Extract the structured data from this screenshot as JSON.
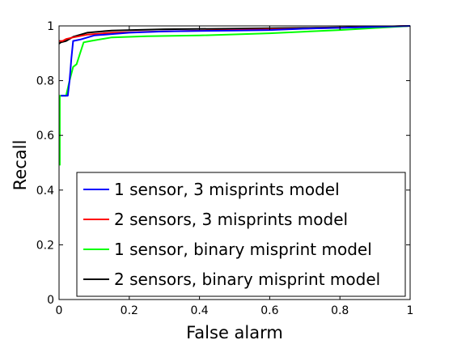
{
  "chart_data": {
    "type": "line",
    "title": "",
    "xlabel": "False alarm",
    "ylabel": "Recall",
    "xlim": [
      0,
      1
    ],
    "ylim": [
      0,
      1
    ],
    "xticks": [
      0,
      0.2,
      0.4,
      0.6,
      0.8,
      1
    ],
    "yticks": [
      0,
      0.2,
      0.4,
      0.6,
      0.8,
      1
    ],
    "xtick_labels": [
      "0",
      "0.2",
      "0.4",
      "0.6",
      "0.8",
      "1"
    ],
    "ytick_labels": [
      "0",
      "0.2",
      "0.4",
      "0.6",
      "0.8",
      "1"
    ],
    "grid": false,
    "legend_position": "bottom-right",
    "series": [
      {
        "name": "1 sensor, 3 misprints model",
        "color": "#0000ff",
        "points": [
          [
            0.005,
            0.745
          ],
          [
            0.025,
            0.745
          ],
          [
            0.03,
            0.8
          ],
          [
            0.035,
            0.88
          ],
          [
            0.04,
            0.945
          ],
          [
            0.06,
            0.95
          ],
          [
            0.1,
            0.965
          ],
          [
            0.2,
            0.975
          ],
          [
            0.3,
            0.98
          ],
          [
            0.5,
            0.983
          ],
          [
            0.6,
            0.985
          ],
          [
            0.7,
            0.99
          ],
          [
            0.8,
            0.993
          ],
          [
            1.0,
            1.0
          ]
        ]
      },
      {
        "name": "2 sensors, 3 misprints model",
        "color": "#ff0000",
        "points": [
          [
            0.0,
            0.945
          ],
          [
            0.01,
            0.945
          ],
          [
            0.02,
            0.952
          ],
          [
            0.04,
            0.958
          ],
          [
            0.08,
            0.968
          ],
          [
            0.15,
            0.975
          ],
          [
            0.3,
            0.98
          ],
          [
            0.5,
            0.985
          ],
          [
            0.7,
            0.99
          ],
          [
            1.0,
            1.0
          ]
        ]
      },
      {
        "name": "1 sensor, binary misprint model",
        "color": "#00ff00",
        "points": [
          [
            0.002,
            0.49
          ],
          [
            0.002,
            0.745
          ],
          [
            0.02,
            0.745
          ],
          [
            0.03,
            0.8
          ],
          [
            0.04,
            0.85
          ],
          [
            0.05,
            0.86
          ],
          [
            0.06,
            0.9
          ],
          [
            0.07,
            0.94
          ],
          [
            0.09,
            0.945
          ],
          [
            0.15,
            0.958
          ],
          [
            0.25,
            0.962
          ],
          [
            0.4,
            0.965
          ],
          [
            0.6,
            0.973
          ],
          [
            0.8,
            0.985
          ],
          [
            1.0,
            1.0
          ]
        ]
      },
      {
        "name": "2 sensors, binary misprint model",
        "color": "#000000",
        "points": [
          [
            0.0,
            0.935
          ],
          [
            0.005,
            0.94
          ],
          [
            0.02,
            0.945
          ],
          [
            0.04,
            0.96
          ],
          [
            0.08,
            0.975
          ],
          [
            0.15,
            0.983
          ],
          [
            0.3,
            0.988
          ],
          [
            0.5,
            0.99
          ],
          [
            0.7,
            0.993
          ],
          [
            0.9,
            0.997
          ],
          [
            1.0,
            1.0
          ]
        ]
      }
    ]
  }
}
